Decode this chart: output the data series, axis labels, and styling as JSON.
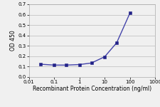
{
  "x": [
    0.03,
    0.1,
    0.3,
    1,
    3,
    10,
    30,
    100
  ],
  "y": [
    0.123,
    0.115,
    0.115,
    0.12,
    0.135,
    0.195,
    0.33,
    0.615
  ],
  "line_color": "#4444AA",
  "marker_color": "#222288",
  "marker": "s",
  "marker_size": 2.5,
  "xlabel": "Recombinant Protein Concentration (ng/ml)",
  "ylabel": "OD 450",
  "xlim": [
    0.01,
    1000
  ],
  "ylim": [
    0.0,
    0.7
  ],
  "yticks": [
    0.0,
    0.1,
    0.2,
    0.3,
    0.4,
    0.5,
    0.6,
    0.7
  ],
  "xticks": [
    0.01,
    0.1,
    1,
    10,
    100,
    1000
  ],
  "xtick_labels": [
    "0.01",
    "0.1",
    "1",
    "10",
    "100",
    "1000"
  ],
  "background_color": "#f0f0f0",
  "plot_bg_color": "#f0f0f0",
  "grid_color": "#bbbbbb",
  "axis_fontsize": 5.5,
  "tick_fontsize": 5.0,
  "line_width": 1.0
}
